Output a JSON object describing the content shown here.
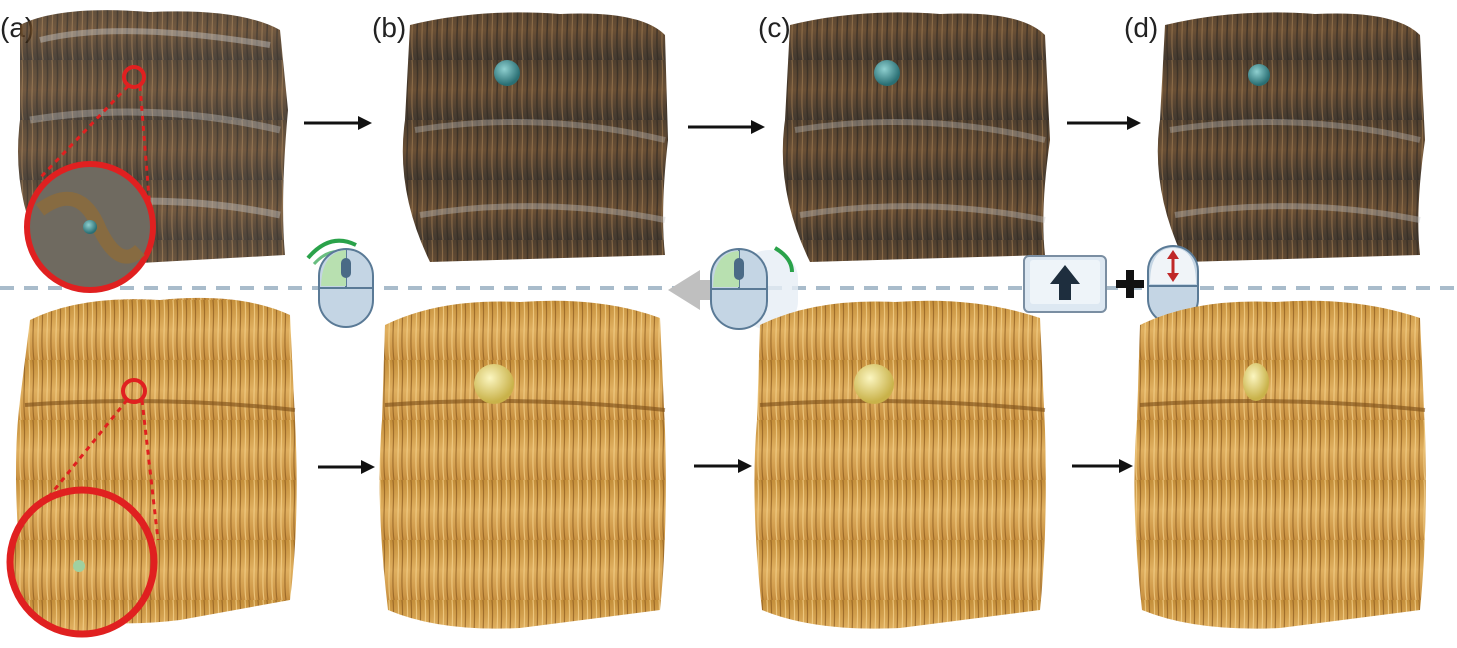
{
  "panels": [
    {
      "label": "(a)"
    },
    {
      "label": "(b)"
    },
    {
      "label": "(c)"
    },
    {
      "label": "(d)"
    }
  ],
  "interaction_icons": {
    "mouse_scroll_left": "mouse-scroll-wheel-icon",
    "mouse_scroll_middle": "mouse-scroll-wheel-icon",
    "shift_key": "shift-arrow-up-key-icon",
    "plus": "+",
    "mouse_drag": "mouse-vertical-drag-icon"
  },
  "colors": {
    "top_streamlines": "#5a3c1e",
    "bottom_streamlines": "#d6a24e",
    "highlight_circle": "#e02020",
    "divider": "#a9bccb",
    "seed_sphere_top": "#3a8f94",
    "seed_sphere_bottom": "#e9e08a"
  }
}
